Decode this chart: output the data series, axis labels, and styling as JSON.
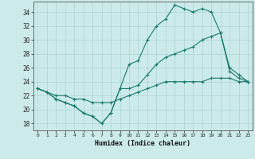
{
  "title": "",
  "xlabel": "Humidex (Indice chaleur)",
  "ylabel": "",
  "bg_color": "#cceaea",
  "line_color": "#1a7a6e",
  "grid_color": "#aad4d4",
  "xlim": [
    -0.5,
    23.5
  ],
  "ylim": [
    17,
    35.5
  ],
  "xticks": [
    0,
    1,
    2,
    3,
    4,
    5,
    6,
    7,
    8,
    9,
    10,
    11,
    12,
    13,
    14,
    15,
    16,
    17,
    18,
    19,
    20,
    21,
    22,
    23
  ],
  "yticks": [
    18,
    20,
    22,
    24,
    26,
    28,
    30,
    32,
    34
  ],
  "line1_x": [
    0,
    1,
    2,
    3,
    4,
    5,
    6,
    7,
    8,
    9,
    10,
    11,
    12,
    13,
    14,
    15,
    16,
    17,
    18,
    19,
    20,
    21,
    22,
    23
  ],
  "line1_y": [
    23,
    22.5,
    21.5,
    21,
    20.5,
    19.5,
    19,
    18,
    19.5,
    23,
    26.5,
    27,
    30,
    32,
    33,
    35,
    34.5,
    34,
    34.5,
    34,
    31,
    26,
    25,
    24
  ],
  "line2_x": [
    0,
    1,
    2,
    3,
    4,
    5,
    6,
    7,
    8,
    9,
    10,
    11,
    12,
    13,
    14,
    15,
    16,
    17,
    18,
    19,
    20,
    21,
    22,
    23
  ],
  "line2_y": [
    23,
    22.5,
    21.5,
    21,
    20.5,
    19.5,
    19,
    18,
    19.5,
    23,
    23,
    23.5,
    25,
    26.5,
    27.5,
    28,
    28.5,
    29,
    30,
    30.5,
    31,
    25.5,
    24.5,
    24
  ],
  "line3_x": [
    0,
    1,
    2,
    3,
    4,
    5,
    6,
    7,
    8,
    9,
    10,
    11,
    12,
    13,
    14,
    15,
    16,
    17,
    18,
    19,
    20,
    21,
    22,
    23
  ],
  "line3_y": [
    23,
    22.5,
    22,
    22,
    21.5,
    21.5,
    21,
    21,
    21,
    21.5,
    22,
    22.5,
    23,
    23.5,
    24,
    24,
    24,
    24,
    24,
    24.5,
    24.5,
    24.5,
    24,
    24
  ]
}
